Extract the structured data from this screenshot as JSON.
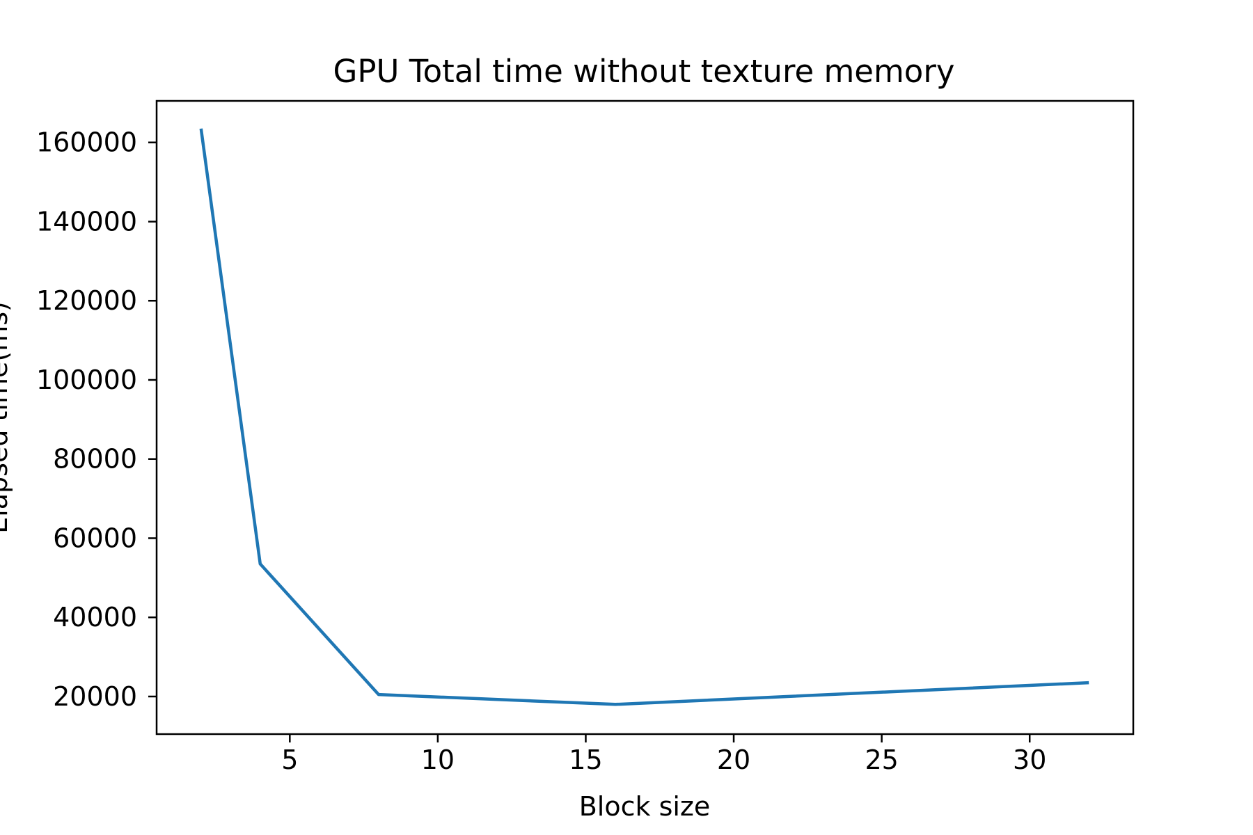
{
  "chart_data": {
    "type": "line",
    "title": "GPU Total time without texture memory",
    "xlabel": "Block size",
    "ylabel": "Elapsed time(ms)",
    "xlim": [
      0.5,
      33.5
    ],
    "ylim": [
      10500,
      170500
    ],
    "x_ticks": [
      5,
      10,
      15,
      20,
      25,
      30
    ],
    "y_ticks": [
      20000,
      40000,
      60000,
      80000,
      100000,
      120000,
      140000,
      160000
    ],
    "grid": false,
    "legend": "none",
    "series": [
      {
        "x": [
          2,
          4,
          8,
          16,
          32
        ],
        "values": [
          163500,
          53500,
          20500,
          18000,
          23500
        ],
        "color": "#1f77b4"
      }
    ]
  }
}
